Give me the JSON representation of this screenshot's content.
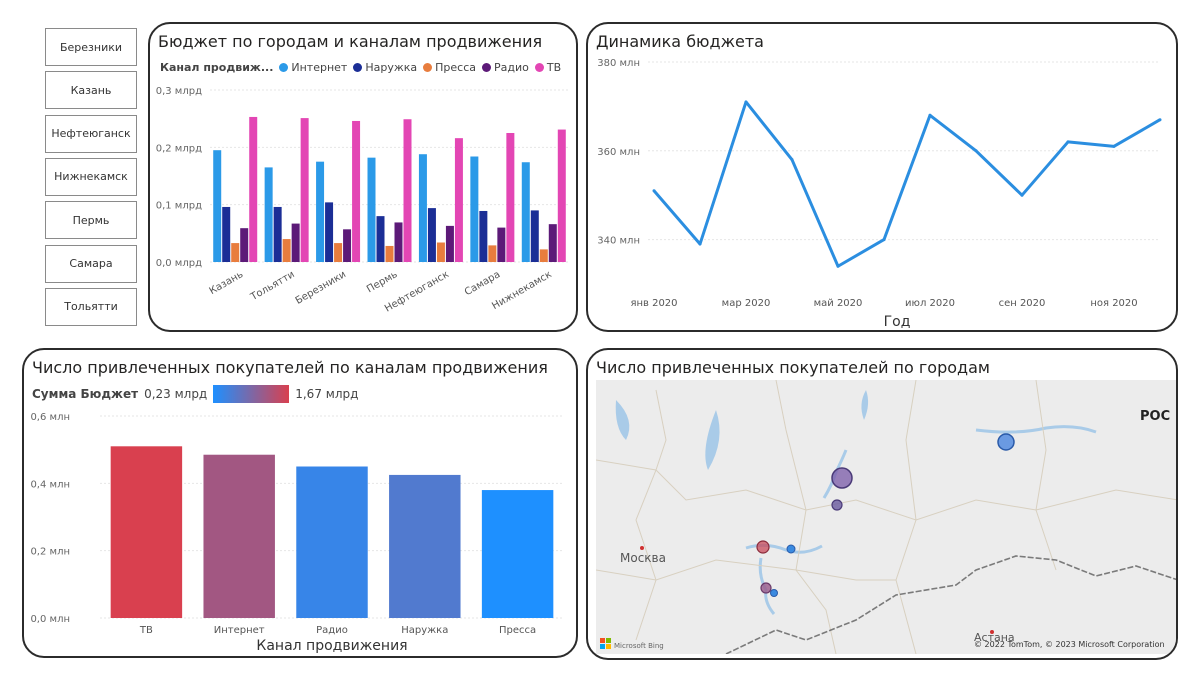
{
  "slicer": {
    "items": [
      "Березники",
      "Казань",
      "Нефтеюганск",
      "Нижнекамск",
      "Пермь",
      "Самара",
      "Тольятти"
    ]
  },
  "colors": {
    "internet": "#2b9ae8",
    "naruzhka": "#1b2e96",
    "pressa": "#e87d3e",
    "radio": "#5c1a78",
    "tv": "#e346b4",
    "line": "#2b8ee0",
    "grad_low": "#1e90ff",
    "grad_high": "#d9404f"
  },
  "chart1": {
    "title": "Бюджет по городам и каналам продвижения",
    "legend_title": "Канал продвиж...",
    "chart_data": {
      "type": "bar",
      "categories": [
        "Казань",
        "Тольятти",
        "Березники",
        "Пермь",
        "Нефтеюганск",
        "Самара",
        "Нижнекамск"
      ],
      "series": [
        {
          "name": "Интернет",
          "values": [
            0.195,
            0.165,
            0.175,
            0.182,
            0.188,
            0.184,
            0.174
          ]
        },
        {
          "name": "Наружка",
          "values": [
            0.096,
            0.096,
            0.104,
            0.08,
            0.094,
            0.089,
            0.09
          ]
        },
        {
          "name": "Пресса",
          "values": [
            0.033,
            0.04,
            0.033,
            0.028,
            0.034,
            0.029,
            0.022
          ]
        },
        {
          "name": "Радио",
          "values": [
            0.059,
            0.067,
            0.057,
            0.069,
            0.063,
            0.06,
            0.066
          ]
        },
        {
          "name": "ТВ",
          "values": [
            0.253,
            0.251,
            0.246,
            0.249,
            0.216,
            0.225,
            0.231
          ]
        }
      ],
      "ylim": [
        0,
        0.3
      ],
      "yticks": [
        {
          "v": 0,
          "label": "0,0 млрд"
        },
        {
          "v": 0.1,
          "label": "0,1 млрд"
        },
        {
          "v": 0.2,
          "label": "0,2 млрд"
        },
        {
          "v": 0.3,
          "label": "0,3 млрд"
        }
      ],
      "grid": true
    }
  },
  "chart2": {
    "title": "Динамика бюджета",
    "chart_data": {
      "type": "line",
      "x": [
        "2020-01",
        "2020-02",
        "2020-03",
        "2020-04",
        "2020-05",
        "2020-06",
        "2020-07",
        "2020-08",
        "2020-09",
        "2020-10",
        "2020-11",
        "2020-12"
      ],
      "values": [
        351,
        339,
        371,
        358,
        334,
        340,
        368,
        360,
        350,
        362,
        361,
        367
      ],
      "unit": "млн",
      "ylim": [
        330,
        380
      ],
      "yticks": [
        {
          "v": 340,
          "label": "340 млн"
        },
        {
          "v": 360,
          "label": "360 млн"
        },
        {
          "v": 380,
          "label": "380 млн"
        }
      ],
      "xticks": [
        {
          "i": 0,
          "label": "янв 2020"
        },
        {
          "i": 2,
          "label": "мар 2020"
        },
        {
          "i": 4,
          "label": "май 2020"
        },
        {
          "i": 6,
          "label": "июл 2020"
        },
        {
          "i": 8,
          "label": "сен 2020"
        },
        {
          "i": 10,
          "label": "ноя 2020"
        }
      ],
      "xlabel": "Год",
      "grid": true
    }
  },
  "chart3": {
    "title": "Число привлеченных покупателей по каналам продвижения",
    "legend_title": "Сумма Бюджет",
    "legend_min": "0,23 млрд",
    "legend_max": "1,67 млрд",
    "chart_data": {
      "type": "bar",
      "categories": [
        "ТВ",
        "Интернет",
        "Радио",
        "Наружка",
        "Пресса"
      ],
      "values": [
        0.51,
        0.485,
        0.45,
        0.425,
        0.38
      ],
      "color_values": [
        1.67,
        1.25,
        0.42,
        0.62,
        0.23
      ],
      "ylim": [
        0,
        0.6
      ],
      "yticks": [
        {
          "v": 0,
          "label": "0,0 млн"
        },
        {
          "v": 0.2,
          "label": "0,2 млн"
        },
        {
          "v": 0.4,
          "label": "0,4 млн"
        },
        {
          "v": 0.6,
          "label": "0,6 млн"
        }
      ],
      "xlabel": "Канал продвижения",
      "grid": true
    }
  },
  "chart4": {
    "title": "Число привлеченных покупателей по городам",
    "labels": {
      "moscow": "Москва",
      "astana": "Астана",
      "region": "РОС"
    },
    "attribution": "© 2022 TomTom, © 2023 Microsoft Corporation",
    "brand": "Microsoft Bing",
    "bubbles": [
      {
        "size": "large",
        "color": "#7a5aa8"
      },
      {
        "size": "medium",
        "color": "#4a86e0"
      },
      {
        "size": "small",
        "color": "#6a5aa0"
      },
      {
        "size": "small",
        "color": "#c84a5a"
      },
      {
        "size": "tiny",
        "color": "#3a8ae0"
      },
      {
        "size": "small",
        "color": "#9a5a8a"
      },
      {
        "size": "tiny",
        "color": "#3a8ae0"
      }
    ]
  }
}
